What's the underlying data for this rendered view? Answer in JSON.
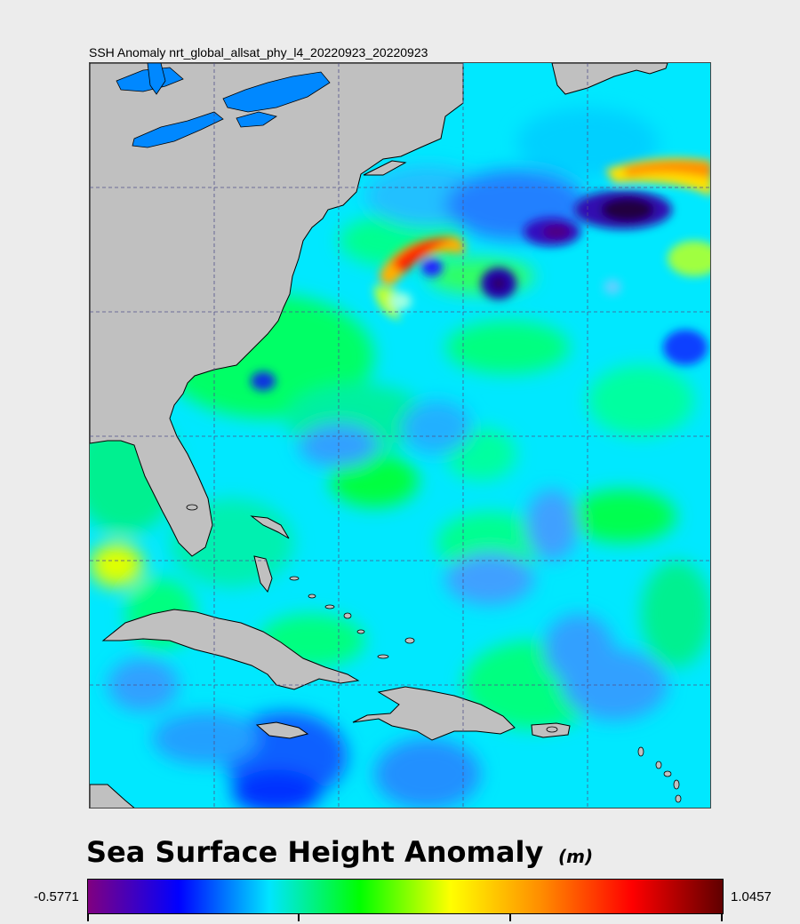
{
  "map": {
    "title": "SSH Anomaly nrt_global_allsat_phy_l4_20220923_20220923",
    "grid": "dashed",
    "land_color": "#c0c0c0",
    "lake_color": "#0088ff",
    "ocean_base_color": "#00e8ff"
  },
  "colorbar": {
    "title": "Sea Surface Height Anomaly",
    "unit": "(m)",
    "min_label": "-0.5771",
    "max_label": "1.0457",
    "colors": [
      "#800080",
      "#0000ff",
      "#00e5ff",
      "#00ff00",
      "#ffff00",
      "#ff8c00",
      "#ff0000",
      "#600000"
    ]
  }
}
